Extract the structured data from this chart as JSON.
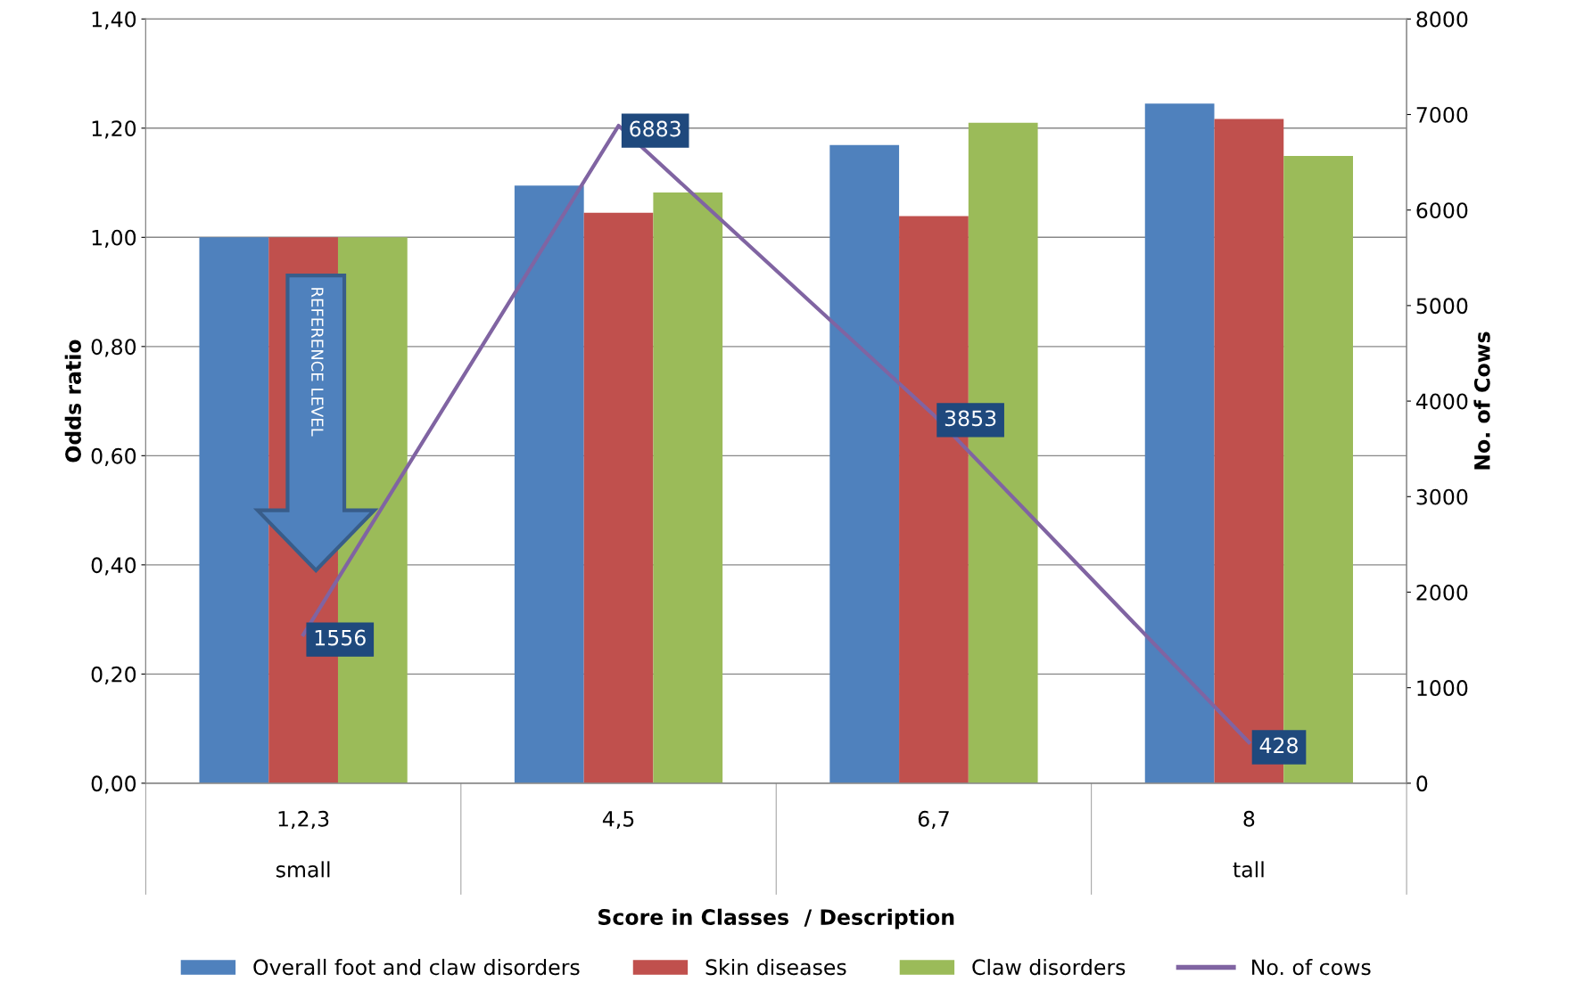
{
  "chart_data": {
    "type": "bar",
    "xlabel": "Score in Classes  / Description",
    "ylabel": "Odds ratio",
    "y2label": "No. of Cows",
    "categories": [
      "1,2,3\nsmall",
      "4,5",
      "6,7",
      "8\ntall"
    ],
    "series": [
      {
        "name": "Overall foot and claw disorders",
        "color": "#4f81bd",
        "values": [
          1.0,
          1.095,
          1.169,
          1.245
        ]
      },
      {
        "name": "Skin diseases",
        "color": "#c0504d",
        "values": [
          1.0,
          1.045,
          1.039,
          1.217
        ]
      },
      {
        "name": "Claw disorders",
        "color": "#9bbb59",
        "values": [
          1.0,
          1.082,
          1.21,
          1.149
        ]
      },
      {
        "name": "No. of cows",
        "type": "line",
        "axis": "y2",
        "color": "#8064a2",
        "values": [
          1556,
          6883,
          3853,
          428
        ],
        "value_labels": [
          "1556",
          "6883",
          "3853",
          "428"
        ],
        "marker": "none"
      }
    ],
    "ylim": [
      0,
      1.4
    ],
    "yticks": [
      {
        "value": 0,
        "label": "0,00"
      },
      {
        "value": 0.2,
        "label": "0,20"
      },
      {
        "value": 0.4,
        "label": "0,40"
      },
      {
        "value": 0.6,
        "label": "0,60"
      },
      {
        "value": 0.8,
        "label": "0,80"
      },
      {
        "value": 1.0,
        "label": "1,00"
      },
      {
        "value": 1.2,
        "label": "1,20"
      },
      {
        "value": 1.4,
        "label": "1,40"
      }
    ],
    "y2lim": [
      0,
      8000
    ],
    "y2ticks": [
      0,
      1000,
      2000,
      3000,
      4000,
      5000,
      6000,
      7000,
      8000
    ],
    "grid": "y",
    "legend": "bottom",
    "annotations": [
      "REFERENCE LEVEL"
    ]
  }
}
